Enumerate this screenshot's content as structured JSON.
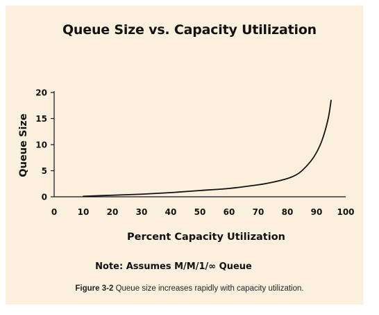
{
  "colors": {
    "panel_background": "#fbf0dd",
    "line": "#111111",
    "axis": "#111111"
  },
  "caption": {
    "label": "Figure 3-2",
    "text": " Queue size increases rapidly with capacity utilization."
  },
  "note": "Note: Assumes M/M/1/∞ Queue",
  "chart_data": {
    "type": "line",
    "title": "Queue Size vs. Capacity Utilization",
    "xlabel": "Percent Capacity Utilization",
    "ylabel": "Queue Size",
    "xlim": [
      0,
      100
    ],
    "ylim": [
      0,
      20
    ],
    "xticks": [
      "0",
      "10",
      "20",
      "30",
      "40",
      "50",
      "60",
      "70",
      "80",
      "90",
      "100"
    ],
    "yticks": [
      "0",
      "5",
      "10",
      "15",
      "20"
    ],
    "grid": false,
    "legend": "none",
    "series": [
      {
        "x": [
          10,
          20,
          30,
          40,
          50,
          60,
          70,
          75,
          80,
          83,
          85,
          88,
          90,
          92,
          94,
          95
        ],
        "y": [
          0.1,
          0.3,
          0.5,
          0.8,
          1.2,
          1.6,
          2.3,
          2.8,
          3.5,
          4.2,
          5.0,
          6.8,
          8.5,
          11.0,
          15.0,
          18.5
        ]
      }
    ]
  }
}
